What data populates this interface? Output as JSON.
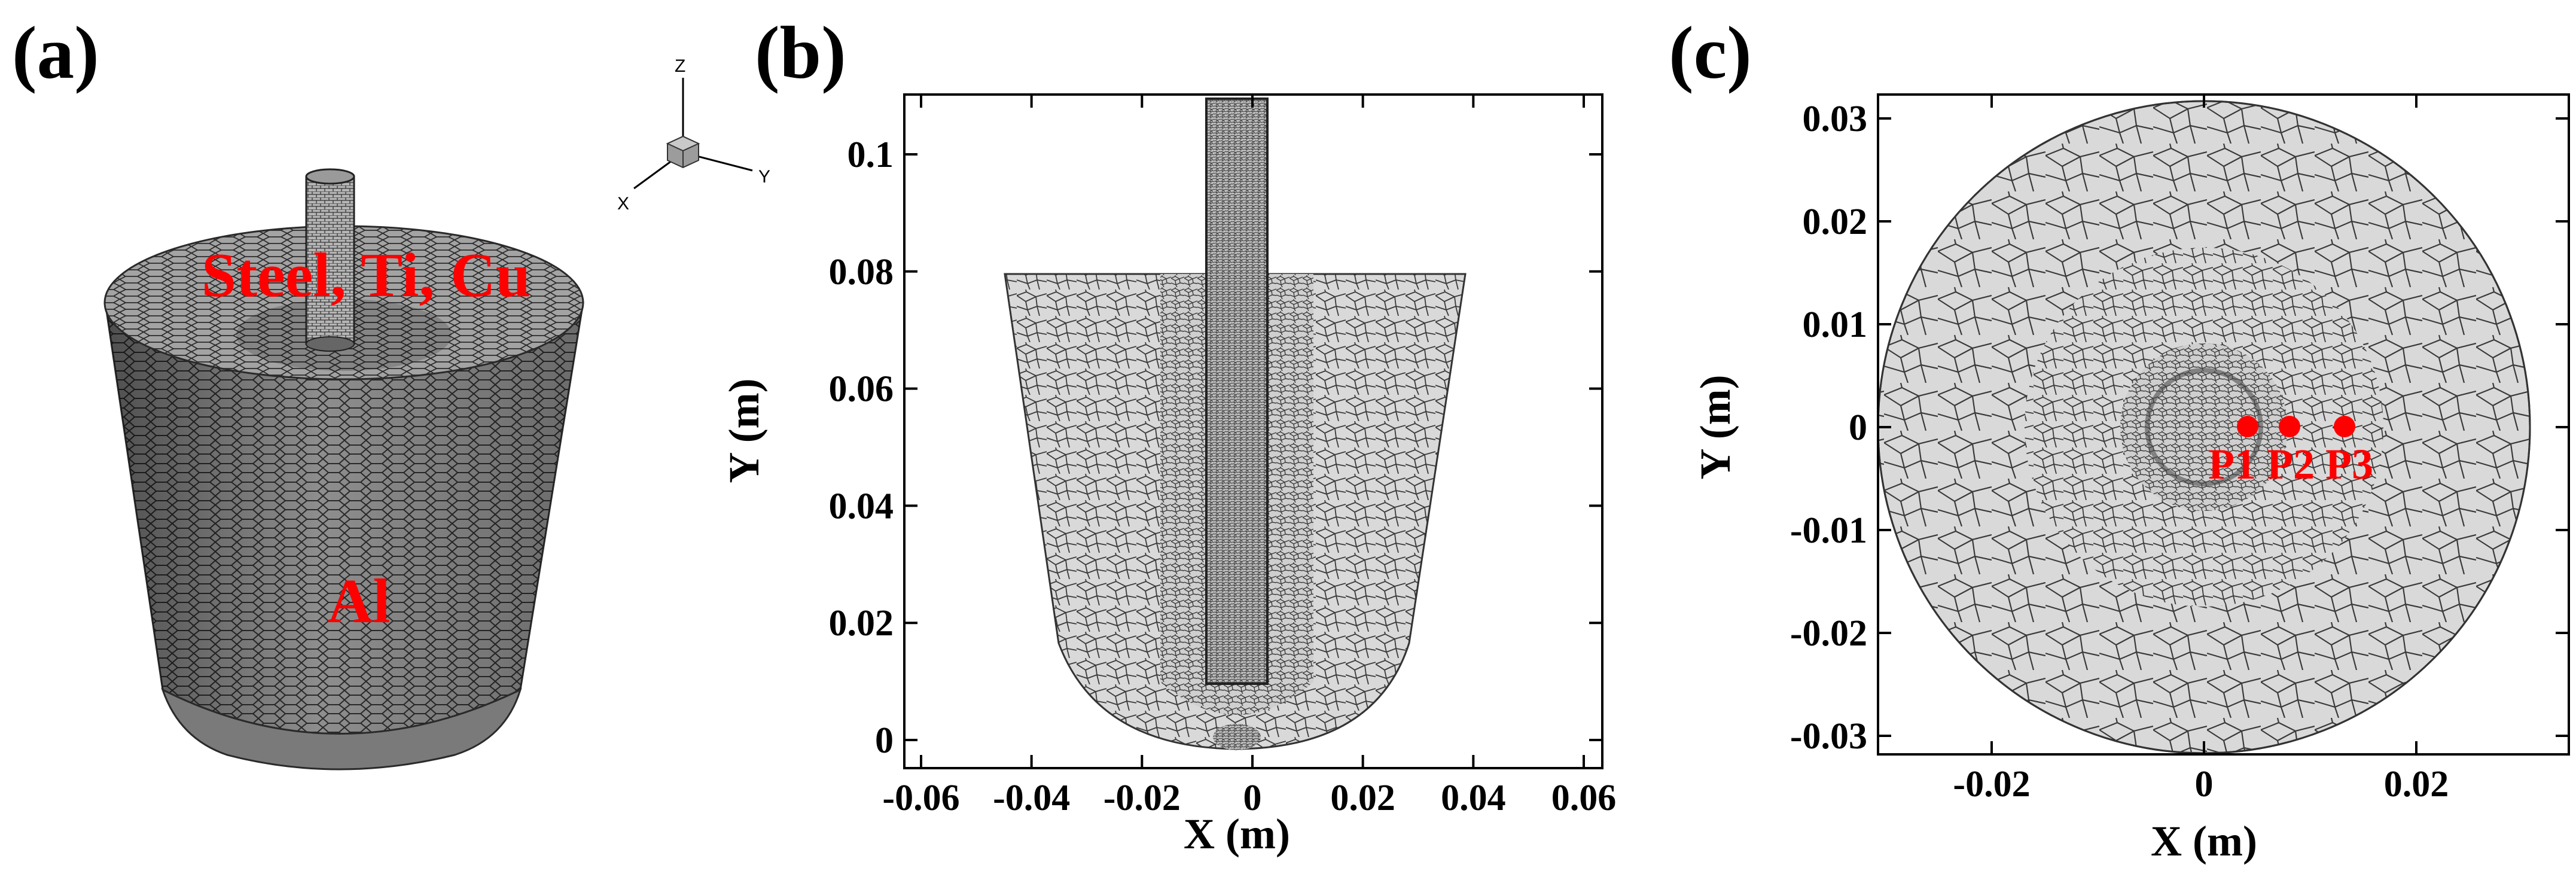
{
  "panels": {
    "a": {
      "label": "(a)",
      "material_top": "Steel, Ti, Cu",
      "material_body": "Al",
      "triad": {
        "z": "Z",
        "y": "Y",
        "x": "X"
      }
    },
    "b": {
      "label": "(b)",
      "xlabel": "X (m)",
      "ylabel": "Y (m)",
      "xticks": [
        "-0.06",
        "-0.04",
        "-0.02",
        "0",
        "0.02",
        "0.04",
        "0.06"
      ],
      "yticks": [
        "0",
        "0.02",
        "0.04",
        "0.06",
        "0.08",
        "0.1"
      ]
    },
    "c": {
      "label": "(c)",
      "xlabel": "X (m)",
      "ylabel": "Y (m)",
      "xticks": [
        "-0.02",
        "0",
        "0.02"
      ],
      "yticks": [
        "-0.03",
        "-0.02",
        "-0.01",
        "0",
        "0.01",
        "0.02",
        "0.03"
      ],
      "points": [
        {
          "label": "P1"
        },
        {
          "label": "P2"
        },
        {
          "label": "P3"
        }
      ]
    }
  },
  "colors": {
    "mesh_fill": "#d9d9d9",
    "mesh_line": "#3a3a3a",
    "label_red": "#ff0000",
    "body_dark": "#6f6f6f"
  }
}
